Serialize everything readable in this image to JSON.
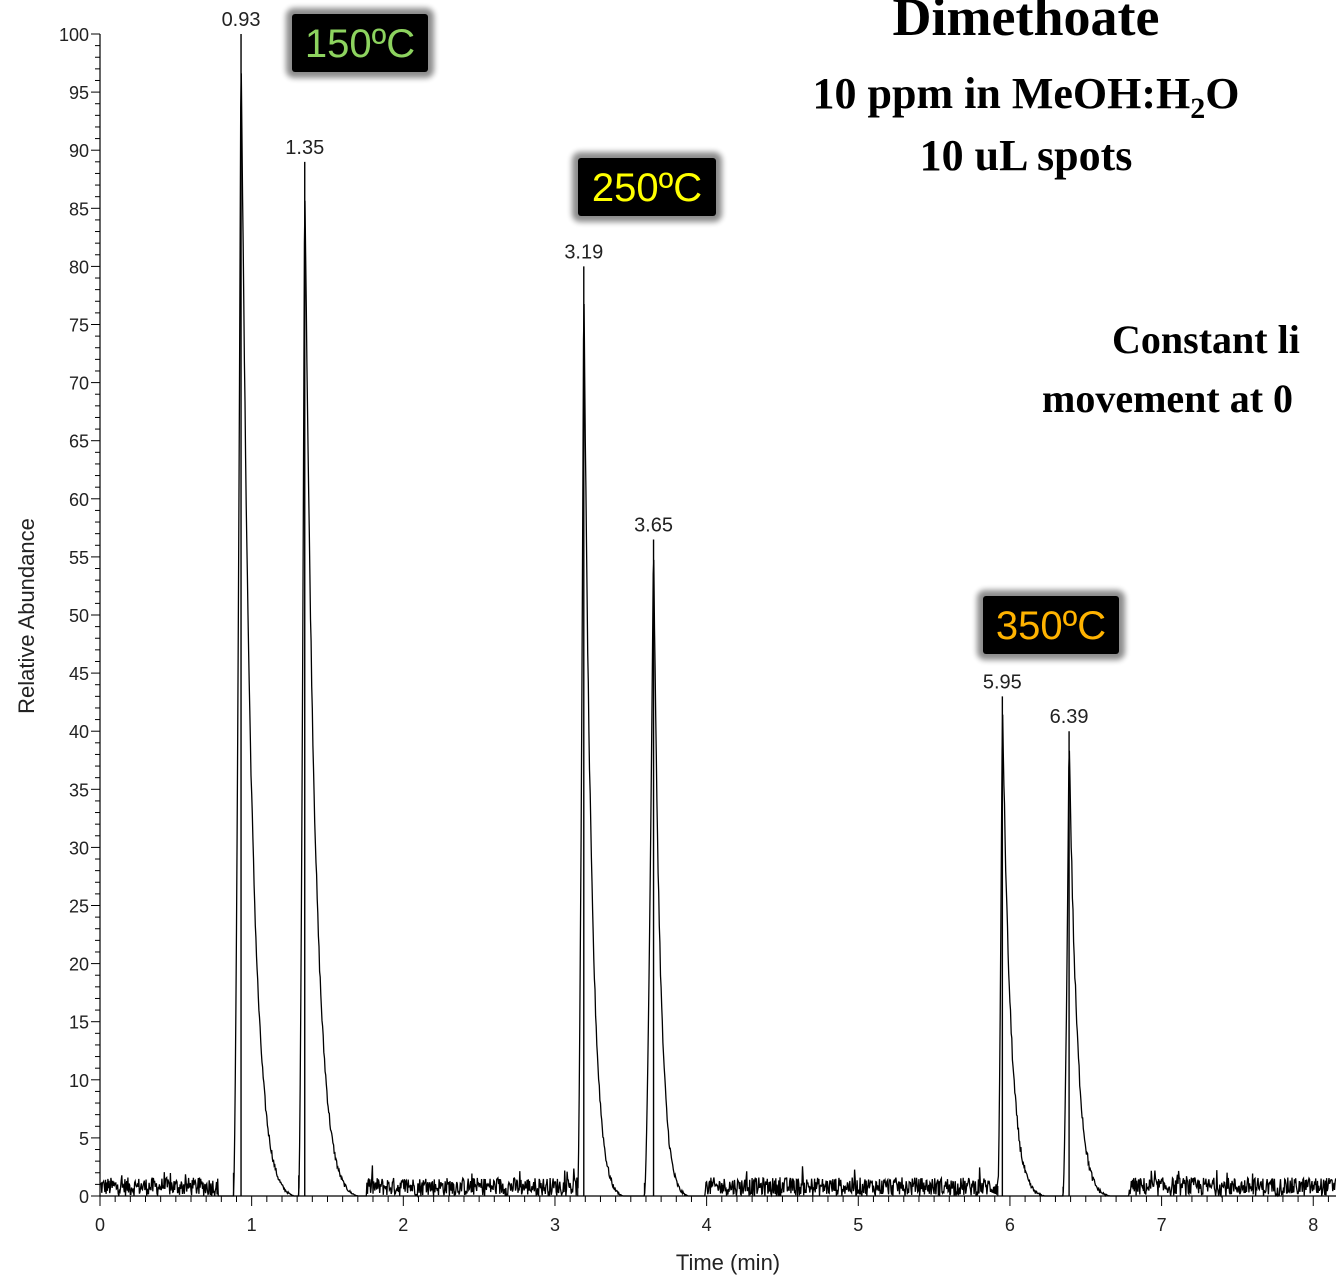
{
  "chart_data": {
    "type": "line",
    "title": "Dimethoate",
    "subtitle_prefix": "10 ppm in MeOH:H",
    "subtitle_sub": "2",
    "subtitle_suffix": "O",
    "subtitle2": "10 uL spots",
    "note_line1": "Constant li",
    "note_line2": "movement at 0",
    "xlabel": "Time (min)",
    "ylabel": "Relative Abundance",
    "xlim": [
      0,
      8.15
    ],
    "ylim": [
      0,
      100
    ],
    "x_ticks": [
      0,
      1,
      2,
      3,
      4,
      5,
      6,
      7,
      8
    ],
    "y_ticks": [
      0,
      5,
      10,
      15,
      20,
      25,
      30,
      35,
      40,
      45,
      50,
      55,
      60,
      65,
      70,
      75,
      80,
      85,
      90,
      95,
      100
    ],
    "peaks": [
      {
        "rt": 0.93,
        "height": 100,
        "start": 0.88,
        "end": 1.28,
        "label": "0.93"
      },
      {
        "rt": 1.35,
        "height": 89,
        "start": 1.31,
        "end": 1.7,
        "label": "1.35"
      },
      {
        "rt": 3.19,
        "height": 80,
        "start": 3.15,
        "end": 3.45,
        "label": "3.19"
      },
      {
        "rt": 3.65,
        "height": 56.5,
        "start": 3.59,
        "end": 3.88,
        "label": "3.65"
      },
      {
        "rt": 5.95,
        "height": 43,
        "start": 5.92,
        "end": 6.23,
        "label": "5.95"
      },
      {
        "rt": 6.39,
        "height": 40,
        "start": 6.35,
        "end": 6.66,
        "label": "6.39"
      }
    ],
    "annotations": [
      {
        "text": "150ºC",
        "color": "#8dd35f",
        "x": 0.93,
        "y": 100
      },
      {
        "text": "250ºC",
        "color": "#ffff00",
        "x": 3.19,
        "y": 80
      },
      {
        "text": "350ºC",
        "color": "#ffb300",
        "x": 5.95,
        "y": 43
      }
    ],
    "grid": false,
    "line_color": "#000000"
  }
}
